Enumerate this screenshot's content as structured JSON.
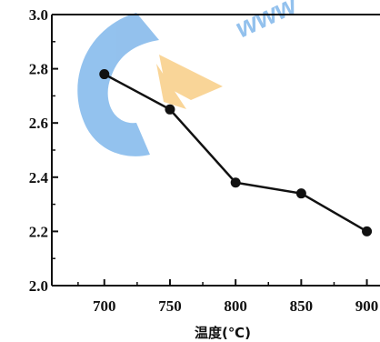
{
  "chart_data": {
    "type": "line",
    "xlabel": "温度(℃)",
    "ylabel": "",
    "title": "",
    "x": [
      700,
      750,
      800,
      850,
      900
    ],
    "series": [
      {
        "values": [
          2.78,
          2.65,
          2.38,
          2.34,
          2.2
        ]
      }
    ],
    "xlim": [
      660,
      910
    ],
    "ylim": [
      2.0,
      3.0
    ],
    "x_ticks": [
      700,
      750,
      800,
      850,
      900
    ],
    "y_ticks": [
      2.0,
      2.2,
      2.4,
      2.6,
      2.8,
      3.0
    ],
    "x_tick_labels": [
      "700",
      "750",
      "800",
      "850",
      "900"
    ],
    "y_tick_labels": [
      "2.0",
      "2.2",
      "2.4",
      "2.6",
      "2.8",
      "3.0"
    ],
    "grid": false,
    "legend": "none"
  },
  "watermark": {
    "text": "www"
  },
  "colors": {
    "line": "#111111",
    "watermark_blue": "#3b8fe0",
    "watermark_orange": "#f5b445"
  }
}
